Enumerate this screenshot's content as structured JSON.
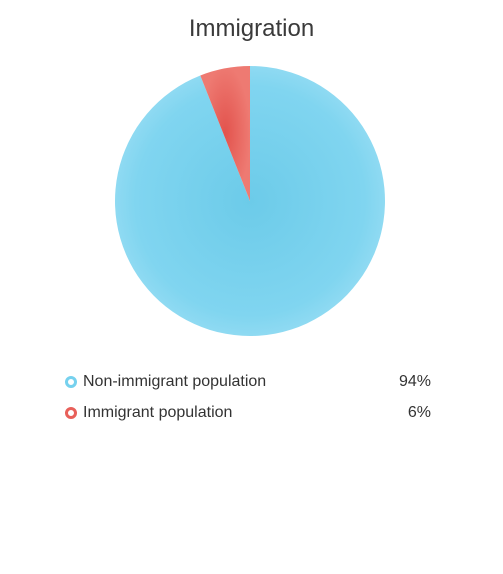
{
  "chart_data": {
    "type": "pie",
    "title": "Immigration",
    "slices": [
      {
        "label": "Non-immigrant population",
        "value": 94,
        "value_label": "94%",
        "color": "#76d1ee"
      },
      {
        "label": "Immigrant population",
        "value": 6,
        "value_label": "6%",
        "color": "#e8605a"
      }
    ],
    "legend_position": "bottom"
  }
}
